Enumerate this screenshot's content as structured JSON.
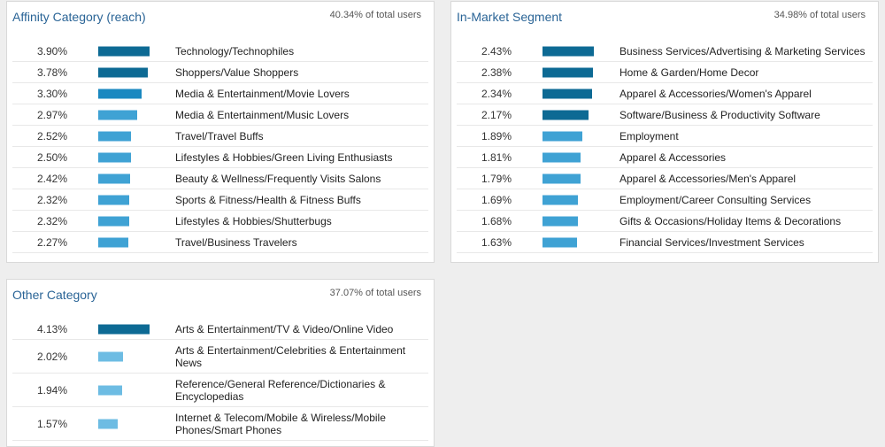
{
  "colors": {
    "bar_dark": "#0d6a94",
    "bar_mid": "#1a88c0",
    "bar_light": "#3fa2d4",
    "bar_lighter": "#6dbce3",
    "title_blue": "#2a6496"
  },
  "affinity": {
    "title": "Affinity Category (reach)",
    "total": "40.34% of total users",
    "rows": [
      {
        "pct": "3.90%",
        "value": 3.9,
        "label": "Technology/Technophiles"
      },
      {
        "pct": "3.78%",
        "value": 3.78,
        "label": "Shoppers/Value Shoppers"
      },
      {
        "pct": "3.30%",
        "value": 3.3,
        "label": "Media & Entertainment/Movie Lovers"
      },
      {
        "pct": "2.97%",
        "value": 2.97,
        "label": "Media & Entertainment/Music Lovers"
      },
      {
        "pct": "2.52%",
        "value": 2.52,
        "label": "Travel/Travel Buffs"
      },
      {
        "pct": "2.50%",
        "value": 2.5,
        "label": "Lifestyles & Hobbies/Green Living Enthusiasts"
      },
      {
        "pct": "2.42%",
        "value": 2.42,
        "label": "Beauty & Wellness/Frequently Visits Salons"
      },
      {
        "pct": "2.32%",
        "value": 2.32,
        "label": "Sports & Fitness/Health & Fitness Buffs"
      },
      {
        "pct": "2.32%",
        "value": 2.32,
        "label": "Lifestyles & Hobbies/Shutterbugs"
      },
      {
        "pct": "2.27%",
        "value": 2.27,
        "label": "Travel/Business Travelers"
      }
    ]
  },
  "inmarket": {
    "title": "In-Market Segment",
    "total": "34.98% of total users",
    "rows": [
      {
        "pct": "2.43%",
        "value": 2.43,
        "label": "Business Services/Advertising & Marketing Services"
      },
      {
        "pct": "2.38%",
        "value": 2.38,
        "label": "Home & Garden/Home Decor"
      },
      {
        "pct": "2.34%",
        "value": 2.34,
        "label": "Apparel & Accessories/Women's Apparel"
      },
      {
        "pct": "2.17%",
        "value": 2.17,
        "label": "Software/Business & Productivity Software"
      },
      {
        "pct": "1.89%",
        "value": 1.89,
        "label": "Employment"
      },
      {
        "pct": "1.81%",
        "value": 1.81,
        "label": "Apparel & Accessories"
      },
      {
        "pct": "1.79%",
        "value": 1.79,
        "label": "Apparel & Accessories/Men's Apparel"
      },
      {
        "pct": "1.69%",
        "value": 1.69,
        "label": "Employment/Career Consulting Services"
      },
      {
        "pct": "1.68%",
        "value": 1.68,
        "label": "Gifts & Occasions/Holiday Items & Decorations"
      },
      {
        "pct": "1.63%",
        "value": 1.63,
        "label": "Financial Services/Investment Services"
      }
    ]
  },
  "other": {
    "title": "Other Category",
    "total": "37.07% of total users",
    "rows": [
      {
        "pct": "4.13%",
        "value": 4.13,
        "label": "Arts & Entertainment/TV & Video/Online Video"
      },
      {
        "pct": "2.02%",
        "value": 2.02,
        "label": "Arts & Entertainment/Celebrities & Entertainment News"
      },
      {
        "pct": "1.94%",
        "value": 1.94,
        "label": "Reference/General Reference/Dictionaries & Encyclopedias"
      },
      {
        "pct": "1.57%",
        "value": 1.57,
        "label": "Internet & Telecom/Mobile & Wireless/Mobile Phones/Smart Phones"
      }
    ]
  }
}
